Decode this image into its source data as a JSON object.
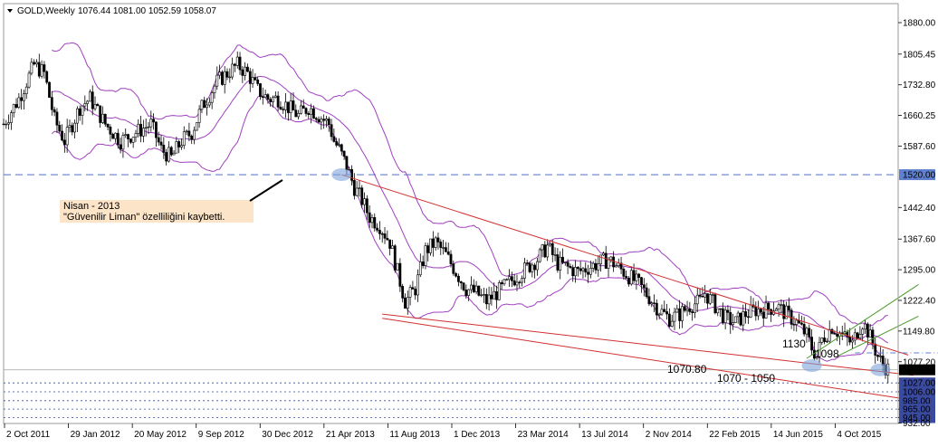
{
  "chart_data": {
    "type": "candlestick",
    "symbol": "GOLD,Weekly",
    "ohlc_readout": "1076.44 1081.00 1052.59 1058.07",
    "current_price": 1058.07,
    "current_price_label": "1058.07",
    "ylim": [
      931,
      1925
    ],
    "yticks": [
      "1880.00",
      "1805.45",
      "1732.80",
      "1660.25",
      "1587.60",
      "1442.40",
      "1367.60",
      "1295.00",
      "1222.40",
      "1149.80",
      "1077.20",
      "1027.00",
      "1006.00",
      "985.00",
      "965.00",
      "945.00",
      "932.00"
    ],
    "price_levels": [
      {
        "label": "1520.00",
        "value": 1520,
        "color": "#5f7fcf"
      },
      {
        "label": "1027.00",
        "value": 1027,
        "color": "#3a4a9f"
      },
      {
        "label": "1006.00",
        "value": 1006,
        "color": "#3a4a9f"
      },
      {
        "label": "985.00",
        "value": 985,
        "color": "#3a4a9f"
      },
      {
        "label": "965.00",
        "value": 965,
        "color": "#3a4a9f"
      },
      {
        "label": "945.00",
        "value": 945,
        "color": "#3a4a9f"
      }
    ],
    "xticks": [
      "2 Oct 2011",
      "29 Jan 2012",
      "20 May 2012",
      "9 Sep 2012",
      "30 Dec 2012",
      "21 Apr 2013",
      "11 Aug 2013",
      "1 Dec 2013",
      "23 Mar 2014",
      "13 Jul 2014",
      "2 Nov 2014",
      "22 Feb 2015",
      "14 Jun 2015",
      "4 Oct 2015"
    ],
    "close_path": [
      [
        0,
        1640
      ],
      [
        6,
        1700
      ],
      [
        12,
        1780
      ],
      [
        16,
        1760
      ],
      [
        20,
        1650
      ],
      [
        24,
        1600
      ],
      [
        30,
        1680
      ],
      [
        34,
        1700
      ],
      [
        40,
        1640
      ],
      [
        46,
        1600
      ],
      [
        52,
        1620
      ],
      [
        58,
        1640
      ],
      [
        62,
        1580
      ],
      [
        66,
        1560
      ],
      [
        70,
        1600
      ],
      [
        74,
        1620
      ],
      [
        78,
        1680
      ],
      [
        84,
        1740
      ],
      [
        88,
        1760
      ],
      [
        92,
        1780
      ],
      [
        96,
        1760
      ],
      [
        100,
        1720
      ],
      [
        104,
        1700
      ],
      [
        108,
        1700
      ],
      [
        112,
        1680
      ],
      [
        116,
        1660
      ],
      [
        120,
        1680
      ],
      [
        124,
        1660
      ],
      [
        128,
        1640
      ],
      [
        130,
        1600
      ],
      [
        132,
        1580
      ],
      [
        135,
        1540
      ],
      [
        138,
        1490
      ],
      [
        141,
        1460
      ],
      [
        144,
        1420
      ],
      [
        148,
        1400
      ],
      [
        152,
        1360
      ],
      [
        155,
        1290
      ],
      [
        158,
        1220
      ],
      [
        162,
        1250
      ],
      [
        166,
        1340
      ],
      [
        170,
        1360
      ],
      [
        174,
        1330
      ],
      [
        178,
        1290
      ],
      [
        182,
        1250
      ],
      [
        186,
        1240
      ],
      [
        190,
        1220
      ],
      [
        196,
        1250
      ],
      [
        200,
        1270
      ],
      [
        206,
        1300
      ],
      [
        210,
        1320
      ],
      [
        214,
        1350
      ],
      [
        218,
        1310
      ],
      [
        222,
        1300
      ],
      [
        226,
        1290
      ],
      [
        230,
        1300
      ],
      [
        234,
        1310
      ],
      [
        238,
        1320
      ],
      [
        242,
        1300
      ],
      [
        246,
        1280
      ],
      [
        250,
        1260
      ],
      [
        254,
        1230
      ],
      [
        258,
        1200
      ],
      [
        262,
        1180
      ],
      [
        266,
        1190
      ],
      [
        270,
        1210
      ],
      [
        274,
        1220
      ],
      [
        276,
        1240
      ],
      [
        280,
        1210
      ],
      [
        284,
        1180
      ],
      [
        288,
        1170
      ],
      [
        292,
        1190
      ],
      [
        296,
        1200
      ],
      [
        300,
        1200
      ],
      [
        304,
        1210
      ],
      [
        308,
        1190
      ],
      [
        312,
        1170
      ],
      [
        316,
        1140
      ],
      [
        318,
        1110
      ],
      [
        320,
        1090
      ],
      [
        322,
        1130
      ],
      [
        326,
        1160
      ],
      [
        330,
        1140
      ],
      [
        334,
        1120
      ],
      [
        336,
        1150
      ],
      [
        338,
        1170
      ],
      [
        340,
        1150
      ],
      [
        342,
        1120
      ],
      [
        344,
        1090
      ],
      [
        346,
        1070
      ],
      [
        348,
        1060
      ]
    ],
    "drawn_lines": [
      {
        "name": "upper-channel-line",
        "color": "#d23030",
        "points": [
          [
            133,
            1520
          ],
          [
            356,
            1093
          ]
        ]
      },
      {
        "name": "lower-channel-line",
        "color": "#d23030",
        "points": [
          [
            149,
            1180
          ],
          [
            358,
            986
          ]
        ]
      },
      {
        "name": "middle-channel-line",
        "color": "#d23030",
        "points": [
          [
            149,
            1190
          ],
          [
            358,
            1045
          ]
        ]
      },
      {
        "name": "green-line-1",
        "color": "#4a9a2a",
        "points": [
          [
            316,
            1085
          ],
          [
            360,
            1260
          ]
        ]
      },
      {
        "name": "green-line-2",
        "color": "#4a9a2a",
        "points": [
          [
            328,
            1090
          ],
          [
            360,
            1185
          ]
        ]
      },
      {
        "name": "1098-level",
        "color": "#5f7fcf",
        "points": [
          [
            335,
            1098
          ],
          [
            390,
            1098
          ]
        ]
      }
    ],
    "annotations": [
      {
        "text": "Nisan - 2013",
        "style": "callout"
      },
      {
        "text": "\"Güvenilir Liman\" özelliliğini kaybetti.",
        "style": "callout"
      },
      {
        "text": "1130",
        "style": "plain"
      },
      {
        "text": "1098",
        "style": "plain"
      },
      {
        "text": "1070.80",
        "style": "plain"
      },
      {
        "text": "1070 - 1050",
        "style": "plain"
      }
    ],
    "highlights": [
      {
        "name": "april-2013-marker",
        "x": 133,
        "y": 1520
      },
      {
        "name": "low-marker-1",
        "x": 318,
        "y": 1068
      },
      {
        "name": "low-marker-2",
        "x": 345,
        "y": 1058
      }
    ],
    "colors": {
      "candle": "#000000",
      "bands": "#a040c0",
      "channel": "#d23030",
      "green": "#4a9a2a",
      "levels": "#3a4a9f",
      "callout": "#fce4c8",
      "price_box": "#000000"
    }
  }
}
